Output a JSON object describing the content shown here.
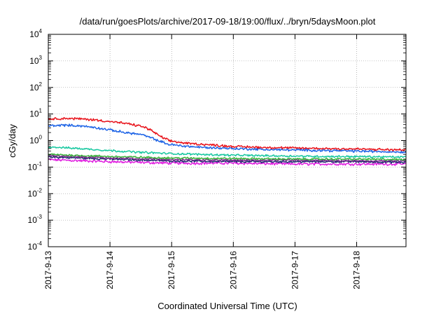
{
  "chart_data": {
    "type": "line",
    "title": "/data/run/goesPlots/archive/2017-09-18/19:00/flux/../bryn/5daysMoon.plot",
    "xlabel": "Coordinated Universal Time (UTC)",
    "ylabel": "cGy/day",
    "yscale": "log",
    "ylim": [
      0.0001,
      10000
    ],
    "xlim_days": [
      0,
      5.8
    ],
    "grid": true,
    "y_ticks": [
      {
        "base": "10",
        "exp": "-4",
        "value": 0.0001
      },
      {
        "base": "10",
        "exp": "-3",
        "value": 0.001
      },
      {
        "base": "10",
        "exp": "-2",
        "value": 0.01
      },
      {
        "base": "10",
        "exp": "-1",
        "value": 0.1
      },
      {
        "base": "10",
        "exp": "0",
        "value": 1
      },
      {
        "base": "10",
        "exp": "1",
        "value": 10
      },
      {
        "base": "10",
        "exp": "2",
        "value": 100
      },
      {
        "base": "10",
        "exp": "3",
        "value": 1000
      },
      {
        "base": "10",
        "exp": "4",
        "value": 10000
      }
    ],
    "x_ticks": [
      {
        "label": "2017-9-13",
        "value": 0
      },
      {
        "label": "2017-9-14",
        "value": 1
      },
      {
        "label": "2017-9-15",
        "value": 2
      },
      {
        "label": "2017-9-16",
        "value": 3
      },
      {
        "label": "2017-9-17",
        "value": 4
      },
      {
        "label": "2017-9-18",
        "value": 5
      }
    ],
    "series": [
      {
        "name": "red",
        "color": "#e8141c",
        "noise": 0.035,
        "x": [
          0,
          0.25,
          0.5,
          0.75,
          1.0,
          1.25,
          1.5,
          1.65,
          1.8,
          1.95,
          2.2,
          2.5,
          3.0,
          3.5,
          4.0,
          4.5,
          5.0,
          5.5,
          5.8
        ],
        "y": [
          6.5,
          6.8,
          6.6,
          6.0,
          5.2,
          4.4,
          3.5,
          2.6,
          1.5,
          1.0,
          0.8,
          0.72,
          0.6,
          0.55,
          0.52,
          0.5,
          0.48,
          0.45,
          0.44
        ]
      },
      {
        "name": "blue",
        "color": "#1e64e6",
        "noise": 0.035,
        "x": [
          0,
          0.25,
          0.5,
          0.75,
          1.0,
          1.25,
          1.5,
          1.65,
          1.8,
          1.95,
          2.2,
          2.5,
          3.0,
          3.5,
          4.0,
          4.5,
          5.0,
          5.5,
          5.8
        ],
        "y": [
          3.6,
          3.8,
          3.6,
          3.1,
          2.5,
          2.0,
          1.7,
          1.3,
          0.95,
          0.72,
          0.62,
          0.55,
          0.5,
          0.46,
          0.44,
          0.42,
          0.4,
          0.38,
          0.37
        ]
      },
      {
        "name": "teal",
        "color": "#18c8a0",
        "noise": 0.03,
        "x": [
          0,
          0.5,
          1.0,
          1.5,
          2.0,
          2.5,
          3.0,
          3.5,
          4.0,
          4.5,
          5.0,
          5.5,
          5.8
        ],
        "y": [
          0.58,
          0.5,
          0.42,
          0.36,
          0.32,
          0.3,
          0.28,
          0.27,
          0.26,
          0.25,
          0.25,
          0.24,
          0.24
        ]
      },
      {
        "name": "green",
        "color": "#3cb43c",
        "noise": 0.03,
        "x": [
          0,
          1.0,
          2.0,
          3.0,
          4.0,
          5.0,
          5.8
        ],
        "y": [
          0.3,
          0.25,
          0.22,
          0.21,
          0.2,
          0.2,
          0.19
        ]
      },
      {
        "name": "purple",
        "color": "#7a2a8c",
        "noise": 0.03,
        "x": [
          0,
          1.0,
          2.0,
          3.0,
          4.0,
          5.0,
          5.8
        ],
        "y": [
          0.27,
          0.22,
          0.19,
          0.18,
          0.18,
          0.17,
          0.17
        ]
      },
      {
        "name": "navy",
        "color": "#1c2a6e",
        "noise": 0.03,
        "x": [
          0,
          1.0,
          2.0,
          3.0,
          4.0,
          5.0,
          5.8
        ],
        "y": [
          0.24,
          0.2,
          0.17,
          0.16,
          0.16,
          0.16,
          0.15
        ]
      },
      {
        "name": "magenta",
        "color": "#e01ee0",
        "noise": 0.04,
        "x": [
          0,
          1.0,
          2.0,
          3.0,
          4.0,
          5.0,
          5.8
        ],
        "y": [
          0.19,
          0.16,
          0.14,
          0.14,
          0.13,
          0.13,
          0.13
        ]
      }
    ]
  }
}
